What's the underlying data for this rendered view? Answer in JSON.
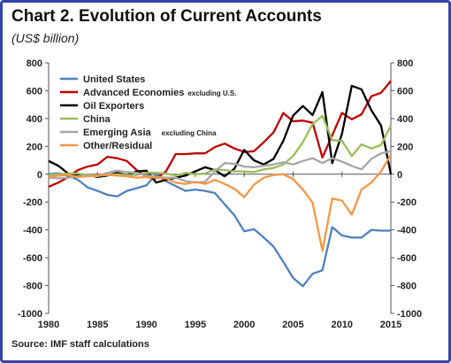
{
  "title": "Chart 2. Evolution of Current Accounts",
  "subtitle": "(US$ billion)",
  "source": "Source: IMF staff calculations",
  "chart_data": {
    "type": "line",
    "title": "Chart 2. Evolution of Current Accounts",
    "subtitle": "(US$ billion)",
    "xlabel": "",
    "ylabel": "",
    "xlim": [
      1980,
      2015
    ],
    "ylim": [
      -1000,
      800
    ],
    "x_ticks": [
      1980,
      1985,
      1990,
      1995,
      2000,
      2005,
      2010,
      2015
    ],
    "x_tick_labels": [
      "1980",
      "1985",
      "1990",
      "1995",
      "2000",
      "2005",
      "2010",
      "2015"
    ],
    "y_ticks": [
      -1000,
      -800,
      -600,
      -400,
      -200,
      0,
      200,
      400,
      600,
      800
    ],
    "y_tick_labels": [
      "-1000",
      "-800",
      "-600",
      "-400",
      "-200",
      "0",
      "200",
      "400",
      "600",
      "800"
    ],
    "y_axis_sides": [
      "left",
      "right"
    ],
    "grid": false,
    "legend_position": "top-left",
    "x": [
      1980,
      1981,
      1982,
      1983,
      1984,
      1985,
      1986,
      1987,
      1988,
      1989,
      1990,
      1991,
      1992,
      1993,
      1994,
      1995,
      1996,
      1997,
      1998,
      1999,
      2000,
      2001,
      2002,
      2003,
      2004,
      2005,
      2006,
      2007,
      2008,
      2009,
      2010,
      2011,
      2012,
      2013,
      2014,
      2015
    ],
    "series": [
      {
        "name": "United States",
        "color": "#4f81bd",
        "values": [
          2,
          6,
          -10,
          -40,
          -95,
          -120,
          -148,
          -160,
          -120,
          -100,
          -80,
          0,
          -50,
          -85,
          -120,
          -110,
          -120,
          -135,
          -215,
          -295,
          -410,
          -395,
          -455,
          -520,
          -630,
          -745,
          -805,
          -715,
          -690,
          -380,
          -440,
          -455,
          -455,
          -400,
          -405,
          -405
        ]
      },
      {
        "name": "Advanced Economies",
        "note": "excluding U.S.",
        "color": "#c00000",
        "values": [
          -90,
          -60,
          -20,
          30,
          55,
          70,
          125,
          115,
          95,
          30,
          -20,
          -30,
          20,
          145,
          145,
          150,
          150,
          195,
          220,
          185,
          160,
          165,
          230,
          300,
          440,
          380,
          385,
          370,
          120,
          280,
          440,
          395,
          430,
          560,
          585,
          670
        ]
      },
      {
        "name": "Oil Exporters",
        "color": "#000000",
        "values": [
          95,
          60,
          5,
          -10,
          -5,
          -20,
          -10,
          10,
          -5,
          20,
          25,
          -60,
          -40,
          -25,
          -10,
          20,
          50,
          30,
          -15,
          40,
          175,
          100,
          70,
          110,
          240,
          420,
          490,
          425,
          590,
          80,
          290,
          635,
          610,
          460,
          350,
          0
        ]
      },
      {
        "name": "China",
        "color": "#9bbb59",
        "values": [
          -5,
          0,
          5,
          5,
          -5,
          -10,
          -5,
          0,
          -5,
          -5,
          10,
          10,
          5,
          -10,
          10,
          0,
          5,
          35,
          30,
          20,
          20,
          15,
          35,
          45,
          70,
          130,
          230,
          360,
          420,
          245,
          240,
          130,
          215,
          185,
          210,
          350
        ]
      },
      {
        "name": "Emerging Asia",
        "note": "excluding China",
        "color": "#a6a6a6",
        "values": [
          -25,
          -30,
          -25,
          -15,
          -10,
          -15,
          10,
          25,
          15,
          10,
          -10,
          -20,
          -25,
          -25,
          -50,
          -60,
          -55,
          20,
          80,
          75,
          55,
          50,
          60,
          70,
          85,
          70,
          95,
          115,
          80,
          115,
          90,
          60,
          35,
          110,
          150,
          165
        ]
      },
      {
        "name": "Other/Residual",
        "color": "#f79646",
        "values": [
          -20,
          -10,
          -5,
          -20,
          -15,
          -10,
          -5,
          -10,
          -15,
          -25,
          -20,
          -25,
          -30,
          -60,
          -70,
          -55,
          -70,
          -40,
          -70,
          -105,
          -165,
          -75,
          -25,
          -5,
          0,
          -35,
          -110,
          -205,
          -550,
          -175,
          -190,
          -290,
          -110,
          -60,
          20,
          140
        ]
      }
    ]
  }
}
